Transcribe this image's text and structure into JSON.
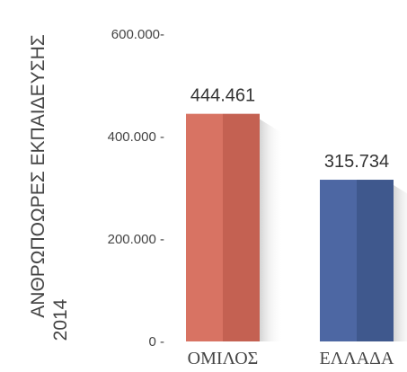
{
  "chart_data": {
    "type": "bar",
    "ylabel": "ΑΝΘΡΩΠΟΩΡΕΣ ΕΚΠΑΙΔΕΥΣΗΣ",
    "ylabel_line2": "2014",
    "xlabel": "",
    "ylim": [
      0,
      600000
    ],
    "yticks": [
      {
        "value": 0,
        "label": "0 -"
      },
      {
        "value": 200000,
        "label": "200.000 -"
      },
      {
        "value": 400000,
        "label": "400.000 -"
      },
      {
        "value": 600000,
        "label": "600.000-"
      }
    ],
    "categories": [
      "ΟΜΙΛΟΣ",
      "ΕΛΛΑΔΑ"
    ],
    "values": [
      444461,
      315734
    ],
    "value_labels": [
      "444.461",
      "315.734"
    ],
    "colors": [
      {
        "front": "#d87363",
        "side": "#c46152"
      },
      {
        "front": "#4d67a3",
        "side": "#3f588d"
      }
    ],
    "grid": false,
    "legend": "none"
  }
}
